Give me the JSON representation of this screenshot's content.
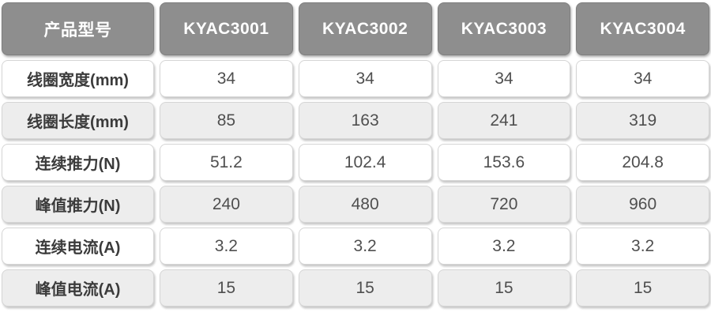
{
  "table": {
    "header": {
      "label": "产品型号",
      "models": [
        "KYAC3001",
        "KYAC3002",
        "KYAC3003",
        "KYAC3004"
      ]
    },
    "rows": [
      {
        "label": "线圈宽度(mm)",
        "values": [
          "34",
          "34",
          "34",
          "34"
        ]
      },
      {
        "label": "线圈长度(mm)",
        "values": [
          "85",
          "163",
          "241",
          "319"
        ]
      },
      {
        "label": "连续推力(N)",
        "values": [
          "51.2",
          "102.4",
          "153.6",
          "204.8"
        ]
      },
      {
        "label": "峰值推力(N)",
        "values": [
          "240",
          "480",
          "720",
          "960"
        ]
      },
      {
        "label": "连续电流(A)",
        "values": [
          "3.2",
          "3.2",
          "3.2",
          "3.2"
        ]
      },
      {
        "label": "峰值电流(A)",
        "values": [
          "15",
          "15",
          "15",
          "15"
        ]
      }
    ],
    "colors": {
      "header_bg": "#8e8e8e",
      "header_text": "#ffffff",
      "row_bg": "#ffffff",
      "row_alt_bg": "#ededed",
      "label_text": "#3b3b3b",
      "value_text": "#4f4f4f",
      "cell_border": "#d5d5d5"
    }
  },
  "chart_data": {
    "type": "table",
    "title": "",
    "columns": [
      "产品型号",
      "KYAC3001",
      "KYAC3002",
      "KYAC3003",
      "KYAC3004"
    ],
    "rows": [
      [
        "线圈宽度(mm)",
        34,
        34,
        34,
        34
      ],
      [
        "线圈长度(mm)",
        85,
        163,
        241,
        319
      ],
      [
        "连续推力(N)",
        51.2,
        102.4,
        153.6,
        204.8
      ],
      [
        "峰值推力(N)",
        240,
        480,
        720,
        960
      ],
      [
        "连续电流(A)",
        3.2,
        3.2,
        3.2,
        3.2
      ],
      [
        "峰值电流(A)",
        15,
        15,
        15,
        15
      ]
    ]
  }
}
